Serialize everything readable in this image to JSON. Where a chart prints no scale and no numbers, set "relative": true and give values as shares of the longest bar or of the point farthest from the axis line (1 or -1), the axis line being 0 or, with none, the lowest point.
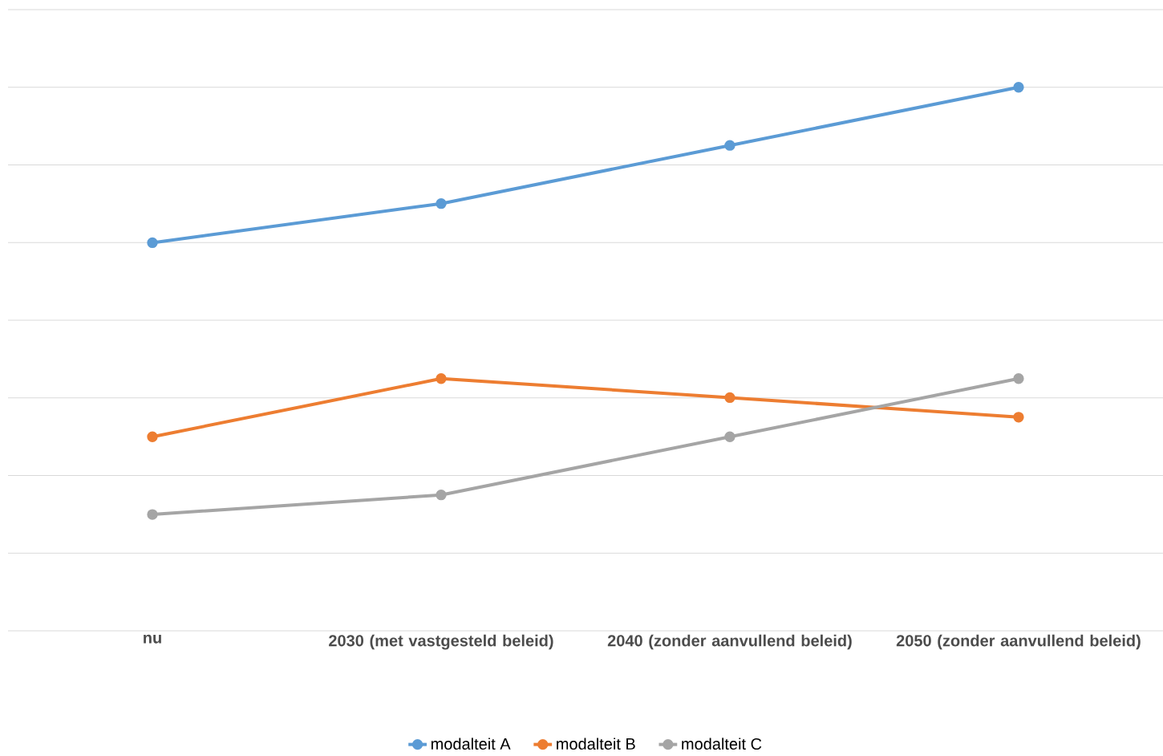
{
  "chart_data": {
    "type": "line",
    "relative": true,
    "categories": [
      "nu",
      "2030 (met vastgesteld beleid)",
      "2040 (zonder aanvullend beleid)",
      "2050 (zonder aanvullend beleid)"
    ],
    "series": [
      {
        "name": "modalteit A",
        "color": "#5b9bd5",
        "values": [
          0.714,
          0.786,
          0.893,
          1
        ]
      },
      {
        "name": "modalteit B",
        "color": "#ed7d31",
        "values": [
          0.357,
          0.464,
          0.429,
          0.393
        ]
      },
      {
        "name": "modalteit C",
        "color": "#a5a5a5",
        "values": [
          0.214,
          0.25,
          0.357,
          0.464
        ]
      }
    ],
    "grid": "y",
    "legend": "bottom",
    "marker": "circle",
    "line_style": "solid"
  }
}
